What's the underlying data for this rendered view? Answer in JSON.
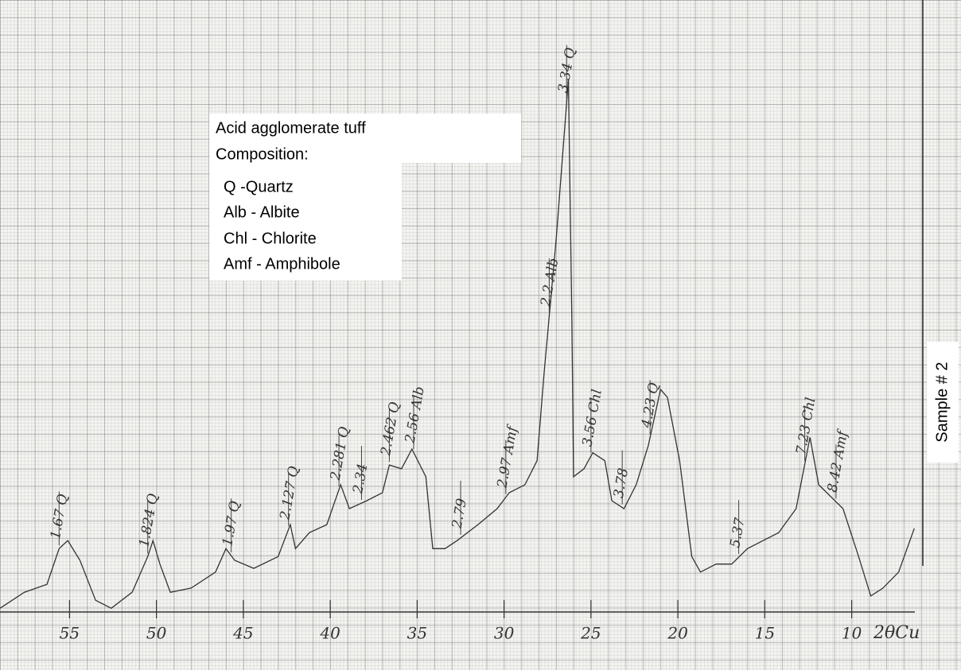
{
  "chart_data": {
    "type": "line",
    "xlabel": "2θCu",
    "xlim": [
      59,
      6
    ],
    "ylim": [
      0,
      100
    ],
    "xticks": [
      55,
      50,
      45,
      40,
      35,
      30,
      25,
      20,
      15,
      10
    ],
    "series": [
      {
        "color": "#333333",
        "x": [
          59.0,
          57.6,
          56.3,
          55.6,
          55.1,
          54.4,
          53.5,
          52.6,
          51.4,
          50.5,
          50.2,
          49.8,
          49.2,
          48.0,
          46.6,
          46.0,
          45.5,
          44.4,
          43.0,
          42.3,
          42.0,
          41.2,
          40.2,
          39.4,
          38.9,
          37.9,
          37.0,
          36.6,
          35.9,
          35.3,
          34.5,
          34.1,
          33.4,
          32.7,
          31.5,
          30.4,
          29.7,
          28.8,
          28.1,
          27.7,
          27.0,
          26.3,
          26.1,
          26.0,
          25.4,
          24.9,
          24.2,
          23.8,
          23.1,
          22.4,
          21.7,
          21.0,
          20.6,
          19.9,
          19.2,
          18.7,
          17.8,
          16.9,
          16.0,
          15.1,
          14.2,
          13.2,
          12.4,
          11.9,
          10.5,
          9.6,
          8.9,
          8.2,
          7.3,
          6.4
        ],
        "values": [
          0.7,
          3.7,
          5.2,
          11.9,
          13.4,
          9.7,
          2.2,
          0.7,
          3.7,
          10.4,
          13.4,
          9.0,
          3.7,
          4.5,
          7.5,
          11.9,
          9.7,
          8.2,
          10.4,
          16.4,
          11.9,
          14.9,
          16.4,
          23.9,
          19.4,
          20.9,
          22.4,
          27.6,
          26.9,
          30.6,
          25.4,
          11.9,
          11.9,
          13.4,
          16.4,
          19.4,
          22.4,
          23.9,
          28.4,
          44.8,
          70.1,
          100,
          55.2,
          25.4,
          26.9,
          29.9,
          28.4,
          20.9,
          19.4,
          23.9,
          31.3,
          41.8,
          40.3,
          28.4,
          10.4,
          7.5,
          9.0,
          9.0,
          11.9,
          13.4,
          14.9,
          19.4,
          32.8,
          23.9,
          19.4,
          10.4,
          3.0,
          4.5,
          7.5,
          15.7
        ]
      }
    ],
    "peaks": [
      {
        "label": "1.67 Q",
        "x": 55.6
      },
      {
        "label": "1.824 Q",
        "x": 50.5
      },
      {
        "label": "1.97 Q",
        "x": 45.7
      },
      {
        "label": "2.127 Q",
        "x": 42.4
      },
      {
        "label": "2.281 Q",
        "x": 39.5
      },
      {
        "label": "2.34",
        "x": 38.2
      },
      {
        "label": "2.462 Q",
        "x": 36.6
      },
      {
        "label": "2.56 Alb",
        "x": 35.2
      },
      {
        "label": "2.79",
        "x": 32.5
      },
      {
        "label": "2.97 Amf",
        "x": 29.9
      },
      {
        "label": "2.2 Alb",
        "x": 27.4
      },
      {
        "label": "3.34 Q",
        "x": 26.4
      },
      {
        "label": "3.56 Chl",
        "x": 25.0
      },
      {
        "label": "3.78",
        "x": 23.2
      },
      {
        "label": "4.23 Q",
        "x": 21.6
      },
      {
        "label": "5.37",
        "x": 16.5
      },
      {
        "label": "7.23 Chl",
        "x": 12.7
      },
      {
        "label": "8.42 Amf",
        "x": 10.9
      }
    ],
    "legend_text": [
      "Acid agglomerate tuff",
      "Composition:",
      "Q -Quartz",
      "Alb - Albite",
      "Chl - Chlorite",
      "Amf - Amphibole"
    ],
    "sample": "Sample # 2"
  }
}
